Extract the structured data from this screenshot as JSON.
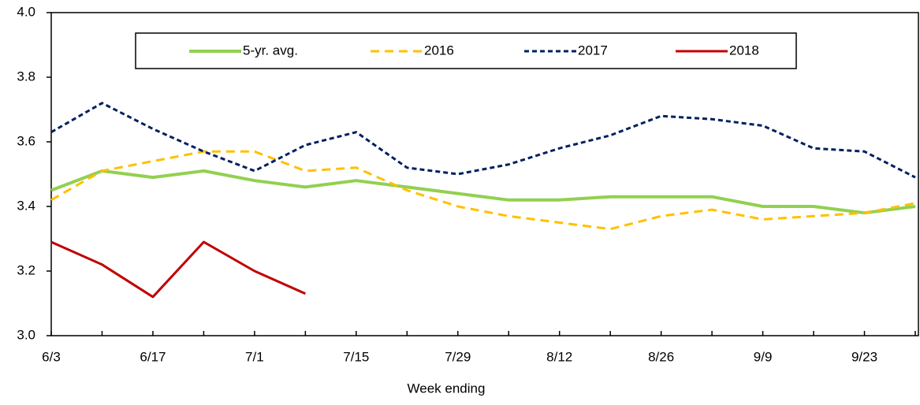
{
  "chart_data": {
    "type": "line",
    "x_label": "Week ending",
    "categories": [
      "6/3",
      null,
      "6/17",
      null,
      "7/1",
      null,
      "7/15",
      null,
      "7/29",
      null,
      "8/12",
      null,
      "8/26",
      null,
      "9/9",
      null,
      "9/23",
      null
    ],
    "series": [
      {
        "name": "5-yr. avg.",
        "color": "#92d050",
        "dash": "solid",
        "values": [
          3.45,
          3.51,
          3.49,
          3.51,
          3.48,
          3.46,
          3.48,
          3.46,
          3.44,
          3.42,
          3.42,
          3.43,
          3.43,
          3.43,
          3.4,
          3.4,
          3.38,
          3.4
        ]
      },
      {
        "name": "2016",
        "color": "#ffc000",
        "dash": "long",
        "values": [
          3.42,
          3.51,
          3.54,
          3.57,
          3.57,
          3.51,
          3.52,
          3.45,
          3.4,
          3.37,
          3.35,
          3.33,
          3.37,
          3.39,
          3.36,
          3.37,
          3.38,
          3.41
        ]
      },
      {
        "name": "2017",
        "color": "#002060",
        "dash": "short",
        "values": [
          3.63,
          3.72,
          3.64,
          3.57,
          3.51,
          3.59,
          3.63,
          3.52,
          3.5,
          3.53,
          3.58,
          3.62,
          3.68,
          3.67,
          3.65,
          3.58,
          3.57,
          3.49
        ]
      },
      {
        "name": "2018",
        "color": "#c00000",
        "dash": "solid",
        "values": [
          3.29,
          3.22,
          3.12,
          3.29,
          3.2,
          3.13,
          null,
          null,
          null,
          null,
          null,
          null,
          null,
          null,
          null,
          null,
          null,
          null
        ]
      }
    ],
    "ylim": [
      3.0,
      4.0
    ],
    "yticks": [
      {
        "value": 3.0,
        "label": "3.0"
      },
      {
        "value": 3.2,
        "label": "3.2"
      },
      {
        "value": 3.4,
        "label": "3.4"
      },
      {
        "value": 3.6,
        "label": "3.6"
      },
      {
        "value": 3.8,
        "label": "3.8"
      },
      {
        "value": 4.0,
        "label": "4.0"
      }
    ],
    "grid": false,
    "legend": "top"
  }
}
